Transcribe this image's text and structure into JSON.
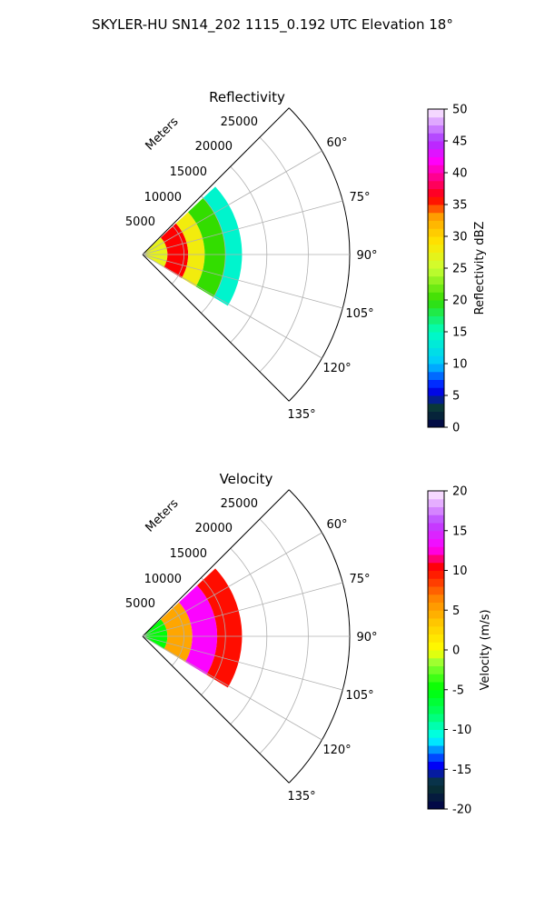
{
  "figure": {
    "title": "SKYLER-HU  SN14_202  1115_0.192 UTC Elevation 18°"
  },
  "panels": [
    {
      "title": "Reflectivity",
      "range_label": "Meters",
      "range_ticks": [
        "5000",
        "10000",
        "15000",
        "20000",
        "25000"
      ],
      "azimuth_ticks": [
        "60°",
        "75°",
        "90°",
        "105°",
        "120°",
        "135°"
      ],
      "colorbar": {
        "label": "Reflectivity dBZ",
        "ticks": [
          "0",
          "5",
          "10",
          "15",
          "20",
          "25",
          "30",
          "35",
          "40",
          "45",
          "50"
        ]
      }
    },
    {
      "title": "Velocity",
      "range_label": "Meters",
      "range_ticks": [
        "5000",
        "10000",
        "15000",
        "20000",
        "25000"
      ],
      "azimuth_ticks": [
        "60°",
        "75°",
        "90°",
        "105°",
        "120°",
        "135°"
      ],
      "colorbar": {
        "label": "Velocity (m/s)",
        "ticks": [
          "-20",
          "-15",
          "-10",
          "-5",
          "0",
          "5",
          "10",
          "15",
          "20"
        ]
      }
    }
  ],
  "chart_data": [
    {
      "type": "heatmap",
      "title": "Reflectivity",
      "projection": "polar sector",
      "azimuth_range_deg": [
        45,
        135
      ],
      "range_max_m": 25000,
      "range_grid_m": [
        5000,
        10000,
        15000,
        20000,
        25000
      ],
      "azimuth_grid_deg": [
        45,
        60,
        75,
        90,
        105,
        120,
        135
      ],
      "units": "dBZ",
      "value_range": [
        0,
        50
      ],
      "data_extent_m": 12000,
      "bands": [
        {
          "range_m": [
            0,
            3000
          ],
          "dbz": 27
        },
        {
          "range_m": [
            3000,
            5500
          ],
          "dbz": 36
        },
        {
          "range_m": [
            5500,
            7500
          ],
          "dbz": 28
        },
        {
          "range_m": [
            7500,
            10000
          ],
          "dbz": 20
        },
        {
          "range_m": [
            10000,
            12000
          ],
          "dbz": 14
        }
      ],
      "grid": true,
      "colorbar_position": "right"
    },
    {
      "type": "heatmap",
      "title": "Velocity",
      "projection": "polar sector",
      "azimuth_range_deg": [
        45,
        135
      ],
      "range_max_m": 25000,
      "range_grid_m": [
        5000,
        10000,
        15000,
        20000,
        25000
      ],
      "azimuth_grid_deg": [
        45,
        60,
        75,
        90,
        105,
        120,
        135
      ],
      "units": "m/s",
      "value_range": [
        -20,
        20
      ],
      "data_extent_m": 12000,
      "bands": [
        {
          "range_m": [
            0,
            3000
          ],
          "ms": -5
        },
        {
          "range_m": [
            3000,
            6000
          ],
          "ms": 5
        },
        {
          "range_m": [
            6000,
            9000
          ],
          "ms": 13
        },
        {
          "range_m": [
            9000,
            12000
          ],
          "ms": 10
        }
      ],
      "grid": true,
      "colorbar_position": "right"
    }
  ]
}
